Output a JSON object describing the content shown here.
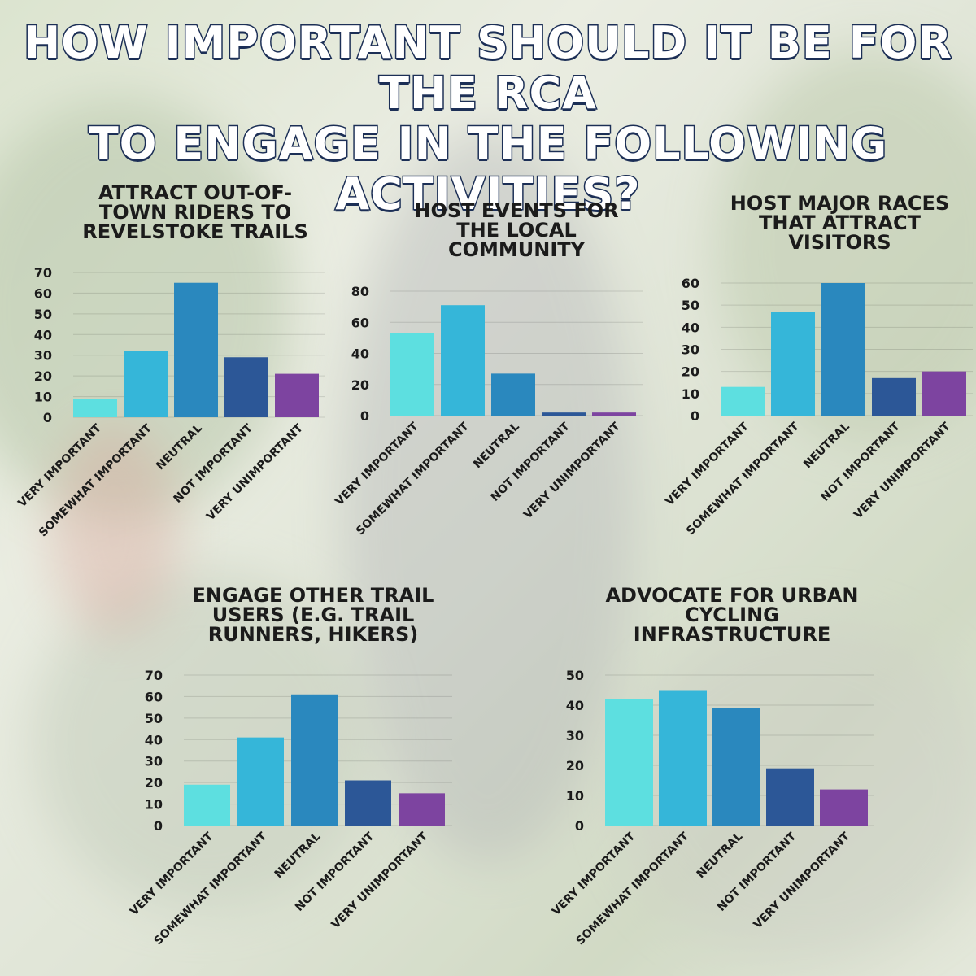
{
  "title_lines": [
    "HOW IMPORTANT SHOULD IT BE FOR THE RCA",
    "TO ENGAGE IN THE FOLLOWING ACTIVITIES?"
  ],
  "colors": [
    "#5ddfe0",
    "#35b6d9",
    "#2a88be",
    "#2c5797",
    "#7d44a0"
  ],
  "chart_data": [
    {
      "type": "bar",
      "title_lines": [
        "ATTRACT OUT-OF-",
        "TOWN RIDERS TO",
        "REVELSTOKE TRAILS"
      ],
      "categories": [
        "VERY IMPORTANT",
        "SOMEWHAT IMPORTANT",
        "NEUTRAL",
        "NOT IMPORTANT",
        "VERY UNIMPORTANT"
      ],
      "values": [
        9,
        32,
        65,
        29,
        21
      ],
      "ylim": [
        0,
        70
      ],
      "yticks": [
        "0",
        "10",
        "20",
        "30",
        "40",
        "50",
        "60",
        "70"
      ],
      "xlabel": "",
      "ylabel": ""
    },
    {
      "type": "bar",
      "title_lines": [
        "HOST EVENTS FOR",
        "THE LOCAL",
        "COMMUNITY"
      ],
      "categories": [
        "VERY IMPORTANT",
        "SOMEWHAT IMPORTANT",
        "NEUTRAL",
        "NOT IMPORTANT",
        "VERY UNIMPORTANT"
      ],
      "values": [
        53,
        71,
        27,
        2,
        2
      ],
      "ylim": [
        0,
        80
      ],
      "yticks": [
        "0",
        "20",
        "40",
        "60",
        "80"
      ],
      "xlabel": "",
      "ylabel": ""
    },
    {
      "type": "bar",
      "title_lines": [
        "HOST MAJOR RACES",
        "THAT ATTRACT",
        "VISITORS"
      ],
      "categories": [
        "VERY IMPORTANT",
        "SOMEWHAT IMPORTANT",
        "NEUTRAL",
        "NOT IMPORTANT",
        "VERY UNIMPORTANT"
      ],
      "values": [
        13,
        47,
        60,
        17,
        20
      ],
      "ylim": [
        0,
        60
      ],
      "yticks": [
        "0",
        "10",
        "20",
        "30",
        "40",
        "50",
        "60"
      ],
      "xlabel": "",
      "ylabel": ""
    },
    {
      "type": "bar",
      "title_lines": [
        "ENGAGE OTHER TRAIL",
        "USERS (E.G. TRAIL",
        "RUNNERS, HIKERS)"
      ],
      "categories": [
        "VERY IMPORTANT",
        "SOMEWHAT IMPORTANT",
        "NEUTRAL",
        "NOT IMPORTANT",
        "VERY UNIMPORTANT"
      ],
      "values": [
        19,
        41,
        61,
        21,
        15
      ],
      "ylim": [
        0,
        70
      ],
      "yticks": [
        "0",
        "10",
        "20",
        "30",
        "40",
        "50",
        "60",
        "70"
      ],
      "xlabel": "",
      "ylabel": ""
    },
    {
      "type": "bar",
      "title_lines": [
        "ADVOCATE FOR URBAN",
        "CYCLING",
        "INFRASTRUCTURE"
      ],
      "categories": [
        "VERY IMPORTANT",
        "SOMEWHAT IMPORTANT",
        "NEUTRAL",
        "NOT IMPORTANT",
        "VERY UNIMPORTANT"
      ],
      "values": [
        42,
        45,
        39,
        19,
        12
      ],
      "ylim": [
        0,
        50
      ],
      "yticks": [
        "0",
        "10",
        "20",
        "30",
        "40",
        "50"
      ],
      "xlabel": "",
      "ylabel": ""
    }
  ]
}
